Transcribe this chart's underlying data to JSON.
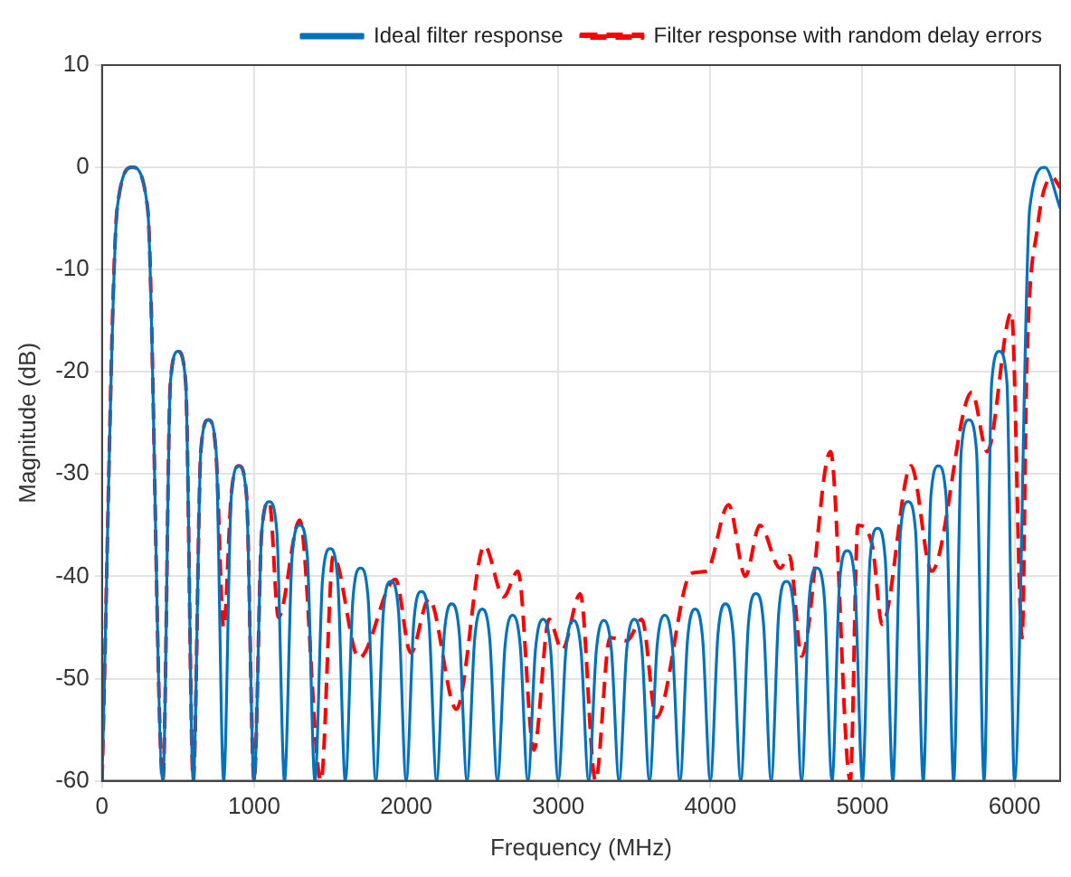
{
  "chart_data": {
    "type": "line",
    "xlabel": "Frequency (MHz)",
    "ylabel": "Magnitude (dB)",
    "xlim": [
      0,
      6300
    ],
    "xticks": [
      0,
      1000,
      2000,
      3000,
      4000,
      5000,
      6000
    ],
    "ylim": [
      -60,
      10
    ],
    "yticks": [
      -60,
      -50,
      -40,
      -30,
      -20,
      -10,
      0,
      10
    ],
    "grid": true,
    "legend": "top right",
    "series": [
      {
        "name": "Ideal filter response",
        "color": "#0072bd",
        "line_style": "solid",
        "x": [
          0,
          100,
          200,
          300,
          400,
          450,
          500,
          550,
          600,
          650,
          700,
          750,
          800,
          850,
          900,
          950,
          1000,
          1050,
          1100,
          1150,
          1200,
          1250,
          1300,
          1350,
          1400,
          1450,
          1500,
          1550,
          1600,
          1650,
          1700,
          1750,
          1800,
          1850,
          1900,
          1950,
          2000,
          2050,
          2100,
          2150,
          2200,
          2250,
          2300,
          2350,
          2400,
          2450,
          2500,
          2550,
          2600,
          2650,
          2700,
          2750,
          2800,
          2850,
          2900,
          2950,
          3000,
          3050,
          3100,
          3150,
          3200,
          3250,
          3300,
          3350,
          3400,
          3450,
          3500,
          3550,
          3600,
          3650,
          3700,
          3750,
          3800,
          3850,
          3900,
          3950,
          4000,
          4050,
          4100,
          4150,
          4200,
          4250,
          4300,
          4350,
          4400,
          4450,
          4500,
          4550,
          4600,
          4650,
          4700,
          4750,
          4800,
          4850,
          4900,
          4950,
          5000,
          5050,
          5100,
          5150,
          5200,
          5250,
          5300,
          5350,
          5400,
          5450,
          5500,
          5550,
          5600,
          5650,
          5700,
          5750,
          5800,
          5850,
          5900,
          5950,
          6000,
          6100,
          6200,
          6300
        ],
        "values": [
          -60,
          -4,
          0,
          -4,
          -60,
          -21,
          -18,
          -21,
          -60,
          -27.7,
          -24.7,
          -27.7,
          -60,
          -32.2,
          -29.2,
          -32.2,
          -60,
          -35.7,
          -32.7,
          -35.7,
          -60,
          -38,
          -35,
          -38,
          -60,
          -40.3,
          -37.3,
          -40.3,
          -60,
          -42.2,
          -39.2,
          -42.2,
          -60,
          -43.5,
          -40.5,
          -43.5,
          -60,
          -44.5,
          -41.5,
          -44.5,
          -60,
          -45.7,
          -42.7,
          -45.7,
          -60,
          -46.2,
          -43.2,
          -46.2,
          -60,
          -46.8,
          -43.8,
          -46.8,
          -60,
          -47.2,
          -44.2,
          -47.2,
          -60,
          -47.3,
          -44.3,
          -47.3,
          -60,
          -47.3,
          -44.3,
          -47.3,
          -60,
          -47.2,
          -44.2,
          -47.2,
          -60,
          -46.8,
          -43.8,
          -46.8,
          -60,
          -46.2,
          -43.2,
          -46.2,
          -60,
          -45.7,
          -42.7,
          -45.7,
          -60,
          -44.7,
          -41.7,
          -44.7,
          -60,
          -43.5,
          -40.5,
          -43.5,
          -60,
          -42.2,
          -39.2,
          -42.2,
          -60,
          -40.5,
          -37.5,
          -40.5,
          -60,
          -38.3,
          -35.3,
          -38.3,
          -60,
          -35.7,
          -32.7,
          -35.7,
          -60,
          -32.2,
          -29.2,
          -32.2,
          -60,
          -27.7,
          -24.7,
          -27.7,
          -60,
          -21,
          -18,
          -21,
          -60,
          -4,
          0,
          -4
        ]
      },
      {
        "name": "Filter response with random delay errors",
        "color": "#ff0000",
        "line_style": "dashed",
        "x": [
          0,
          100,
          200,
          300,
          400,
          450,
          500,
          550,
          600,
          650,
          700,
          750,
          800,
          850,
          900,
          950,
          1000,
          1050,
          1100,
          1160,
          1300,
          1440,
          1520,
          1690,
          1930,
          2030,
          2150,
          2330,
          2515,
          2640,
          2735,
          2840,
          2940,
          3025,
          3145,
          3245,
          3340,
          3450,
          3550,
          3645,
          3875,
          3975,
          4120,
          4230,
          4325,
          4460,
          4520,
          4600,
          4790,
          4920,
          4970,
          5065,
          5130,
          5320,
          5455,
          5720,
          5820,
          5980,
          6050,
          6080,
          6150,
          6250,
          6300
        ],
        "values": [
          -60,
          -4,
          0,
          -4,
          -60,
          -21,
          -18,
          -21,
          -60,
          -27.7,
          -24.7,
          -28,
          -45,
          -32,
          -29.2,
          -32,
          -60,
          -35.7,
          -32.7,
          -44,
          -34.5,
          -60,
          -38,
          -48,
          -40.3,
          -47.5,
          -42.2,
          -53,
          -37,
          -42,
          -39.5,
          -57,
          -44.2,
          -47.2,
          -41.7,
          -60,
          -46,
          -46.3,
          -44.2,
          -53.8,
          -39.7,
          -39.5,
          -33,
          -40,
          -35,
          -39.2,
          -38,
          -47.8,
          -27.8,
          -60,
          -35,
          -37,
          -44.7,
          -29.2,
          -39.5,
          -22,
          -27.8,
          -14.2,
          -46,
          -20,
          -6,
          -1,
          -2
        ]
      }
    ]
  }
}
